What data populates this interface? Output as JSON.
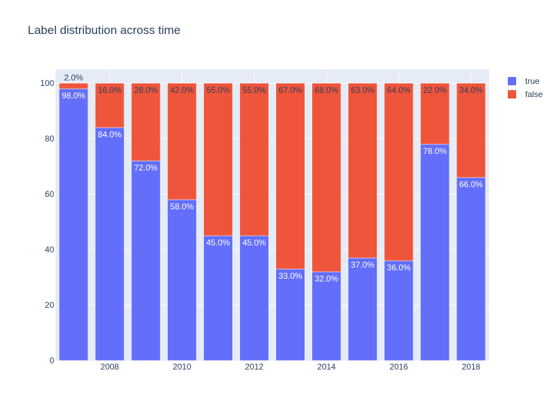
{
  "chart_data": {
    "type": "bar",
    "stacked": true,
    "title": "Label distribution across time",
    "x": [
      2007,
      2008,
      2009,
      2010,
      2011,
      2012,
      2013,
      2014,
      2015,
      2016,
      2017,
      2018
    ],
    "x_tick_labels": [
      "2008",
      "2010",
      "2012",
      "2014",
      "2016",
      "2018"
    ],
    "y_tick_labels": [
      "0",
      "20",
      "40",
      "60",
      "80",
      "100"
    ],
    "ylim": [
      0,
      105
    ],
    "grid": true,
    "legend_position": "top-right",
    "series": [
      {
        "name": "true",
        "color": "#636efa",
        "values": [
          98,
          84,
          72,
          58,
          45,
          45,
          33,
          32,
          37,
          36,
          78,
          66
        ],
        "labels": [
          "98.0%",
          "84.0%",
          "72.0%",
          "58.0%",
          "45.0%",
          "45.0%",
          "33.0%",
          "32.0%",
          "37.0%",
          "36.0%",
          "78.0%",
          "66.0%"
        ]
      },
      {
        "name": "false",
        "color": "#ef553b",
        "values": [
          2,
          16,
          28,
          42,
          55,
          55,
          67,
          68,
          63,
          64,
          22,
          34
        ],
        "labels": [
          "2.0%",
          "16.0%",
          "28.0%",
          "42.0%",
          "55.0%",
          "55.0%",
          "67.0%",
          "68.0%",
          "63.0%",
          "64.0%",
          "22.0%",
          "34.0%"
        ]
      }
    ]
  }
}
